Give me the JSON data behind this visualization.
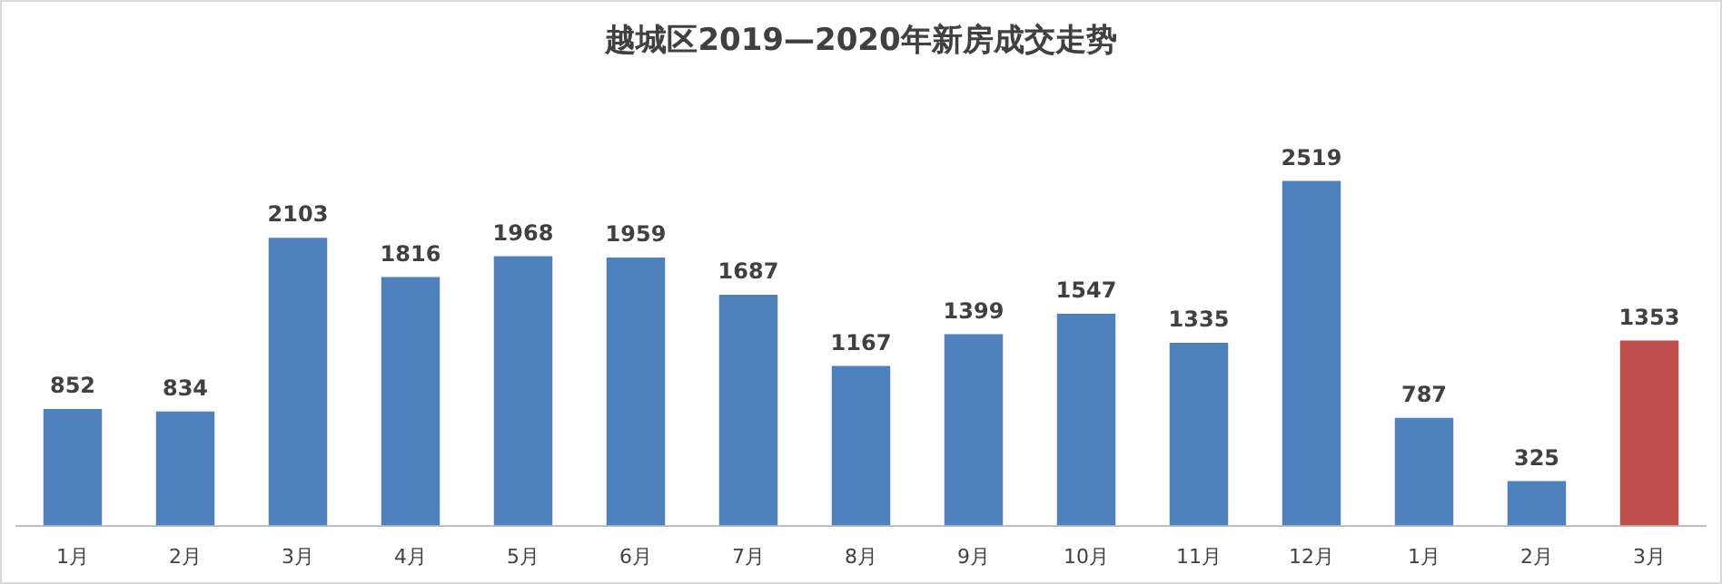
{
  "chart_data": {
    "type": "bar",
    "title": "越城区2019—2020年新房成交走势",
    "categories": [
      "1月",
      "2月",
      "3月",
      "4月",
      "5月",
      "6月",
      "7月",
      "8月",
      "9月",
      "10月",
      "11月",
      "12月",
      "1月",
      "2月",
      "3月"
    ],
    "values": [
      852,
      834,
      2103,
      1816,
      1968,
      1959,
      1687,
      1167,
      1399,
      1547,
      1335,
      2519,
      787,
      325,
      1353
    ],
    "colors": [
      "#4f81bd",
      "#4f81bd",
      "#4f81bd",
      "#4f81bd",
      "#4f81bd",
      "#4f81bd",
      "#4f81bd",
      "#4f81bd",
      "#4f81bd",
      "#4f81bd",
      "#4f81bd",
      "#4f81bd",
      "#4f81bd",
      "#4f81bd",
      "#c0504d"
    ],
    "data_labels": true,
    "grid": false,
    "legend": false,
    "tick_labels": "x"
  }
}
